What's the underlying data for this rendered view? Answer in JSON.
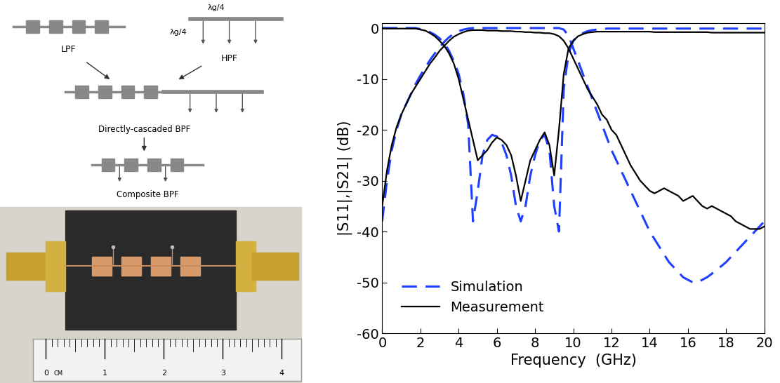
{
  "chart_data": {
    "type": "line",
    "x_label": "Frequency  (GHz)",
    "y_label": "|S11|,|S21| (dB)",
    "x": [
      0,
      0.25,
      0.5,
      0.75,
      1,
      1.25,
      1.5,
      1.75,
      2,
      2.25,
      2.5,
      2.75,
      3,
      3.25,
      3.5,
      3.75,
      4,
      4.25,
      4.5,
      4.75,
      5,
      5.25,
      5.5,
      5.75,
      6,
      6.25,
      6.5,
      6.75,
      7,
      7.25,
      7.5,
      7.75,
      8,
      8.25,
      8.5,
      8.75,
      9,
      9.25,
      9.5,
      9.75,
      10,
      10.25,
      10.5,
      10.75,
      11,
      11.25,
      11.5,
      11.75,
      12,
      12.25,
      12.5,
      12.75,
      13,
      13.25,
      13.5,
      13.75,
      14,
      14.25,
      14.5,
      14.75,
      15,
      15.25,
      15.5,
      15.75,
      16,
      16.25,
      16.5,
      16.75,
      17,
      17.25,
      17.5,
      17.75,
      18,
      18.25,
      18.5,
      18.75,
      19,
      19.25,
      19.5,
      19.75,
      20
    ],
    "series": [
      {
        "name": "Simulation",
        "color": "#1f3fff",
        "line_style": "dashed",
        "values": [
          -38,
          -30,
          -24,
          -20,
          -17,
          -15,
          -13,
          -11,
          -9.3,
          -7.8,
          -6.3,
          -5,
          -3.8,
          -2.7,
          -1.8,
          -1.1,
          -0.6,
          -0.3,
          -0.1,
          0,
          0,
          0,
          0,
          0,
          0,
          0,
          0,
          0,
          0,
          0,
          0,
          0,
          0,
          0,
          0,
          0,
          0,
          0,
          -0.3,
          -1.5,
          -4,
          -6.5,
          -9,
          -11.5,
          -14,
          -16.5,
          -19,
          -21.5,
          -24,
          -26,
          -28,
          -30,
          -32,
          -34,
          -36,
          -38,
          -40,
          -41.5,
          -43,
          -44.5,
          -46,
          -47,
          -48,
          -49,
          -49.5,
          -50,
          -50,
          -49.5,
          -49,
          -48.3,
          -47.5,
          -46.8,
          -46,
          -45,
          -44,
          -43,
          -42,
          -41,
          -40,
          -39,
          -38
        ]
      },
      {
        "name": "Simulation",
        "color": "#1f3fff",
        "line_style": "dashed",
        "values": [
          0,
          0,
          0,
          0,
          0,
          0,
          0,
          0,
          -0.2,
          -0.4,
          -0.8,
          -1.3,
          -2,
          -3,
          -4.5,
          -6.5,
          -9,
          -13,
          -19,
          -38,
          -32,
          -25,
          -22,
          -21,
          -21.3,
          -22.5,
          -25,
          -29,
          -35,
          -38,
          -35,
          -29,
          -25,
          -22,
          -21,
          -24,
          -35,
          -40,
          -12,
          -5,
          -2.5,
          -1.5,
          -1,
          -0.6,
          -0.4,
          -0.3,
          -0.2,
          -0.1,
          -0.1,
          -0.1,
          -0.1,
          -0.1,
          -0.1,
          -0.1,
          -0.1,
          -0.1,
          -0.1,
          -0.1,
          -0.1,
          -0.1,
          -0.1,
          -0.1,
          -0.1,
          -0.1,
          -0.1,
          -0.1,
          -0.1,
          -0.1,
          -0.1,
          -0.1,
          -0.1,
          -0.1,
          -0.1,
          -0.1,
          -0.1,
          -0.1,
          -0.1,
          -0.1,
          -0.1,
          -0.1,
          -0.1
        ]
      },
      {
        "name": "Measurement",
        "color": "#000000",
        "line_style": "solid",
        "values": [
          -35,
          -28,
          -23,
          -19.5,
          -17,
          -15,
          -13,
          -11.5,
          -10,
          -8.5,
          -7,
          -5.8,
          -4.5,
          -3.5,
          -2.5,
          -1.7,
          -1.2,
          -0.8,
          -0.5,
          -0.4,
          -0.4,
          -0.4,
          -0.5,
          -0.5,
          -0.5,
          -0.6,
          -0.6,
          -0.6,
          -0.7,
          -0.7,
          -0.8,
          -0.8,
          -0.9,
          -0.9,
          -1,
          -1,
          -1.2,
          -1.6,
          -2.5,
          -4,
          -6,
          -8,
          -10,
          -12,
          -13.5,
          -15,
          -17,
          -18,
          -20,
          -21,
          -23,
          -25,
          -27,
          -28.5,
          -30,
          -31,
          -32,
          -32.5,
          -32,
          -31.5,
          -32,
          -32.5,
          -33,
          -34,
          -33.5,
          -33,
          -34,
          -35,
          -35.5,
          -35,
          -35.5,
          -36,
          -36.5,
          -37,
          -38,
          -38.5,
          -39,
          -39.5,
          -39.5,
          -39.5,
          -39
        ]
      },
      {
        "name": "Measurement",
        "color": "#000000",
        "line_style": "solid",
        "values": [
          -0.1,
          -0.1,
          -0.1,
          -0.1,
          -0.1,
          -0.1,
          -0.1,
          -0.1,
          -0.3,
          -0.5,
          -1,
          -1.6,
          -2.5,
          -3.5,
          -5,
          -7,
          -10,
          -14,
          -18,
          -22,
          -26,
          -25,
          -24,
          -22.5,
          -21.5,
          -22,
          -23,
          -25,
          -29,
          -34,
          -30,
          -26,
          -24,
          -22,
          -20.5,
          -23,
          -29,
          -20,
          -9,
          -4,
          -2.5,
          -1.6,
          -1.2,
          -0.9,
          -0.8,
          -0.7,
          -0.7,
          -0.7,
          -0.7,
          -0.7,
          -0.7,
          -0.7,
          -0.7,
          -0.7,
          -0.7,
          -0.7,
          -0.7,
          -0.8,
          -0.8,
          -0.8,
          -0.8,
          -0.8,
          -0.8,
          -0.8,
          -0.8,
          -0.8,
          -0.8,
          -0.8,
          -0.8,
          -0.9,
          -0.9,
          -0.9,
          -0.9,
          -0.9,
          -0.9,
          -0.9,
          -0.9,
          -0.9,
          -0.9,
          -0.9,
          -0.9
        ]
      }
    ],
    "xlim": [
      0,
      20
    ],
    "xticks": [
      0,
      2,
      4,
      6,
      8,
      10,
      12,
      14,
      16,
      18,
      20
    ],
    "ylim": [
      -60,
      1
    ],
    "yticks": [
      -60,
      -50,
      -40,
      -30,
      -20,
      -10,
      0
    ],
    "legend": "lower left",
    "grid": false
  },
  "diagram": {
    "lpf": "LPF",
    "hpf": "HPF",
    "cascaded": "Directly-cascaded BPF",
    "composite": "Composite BPF",
    "stub_length": "λg/4"
  },
  "photo": {
    "ruler_unit": "CM",
    "ruler_ticks": [
      0,
      1,
      2,
      3,
      4
    ]
  }
}
